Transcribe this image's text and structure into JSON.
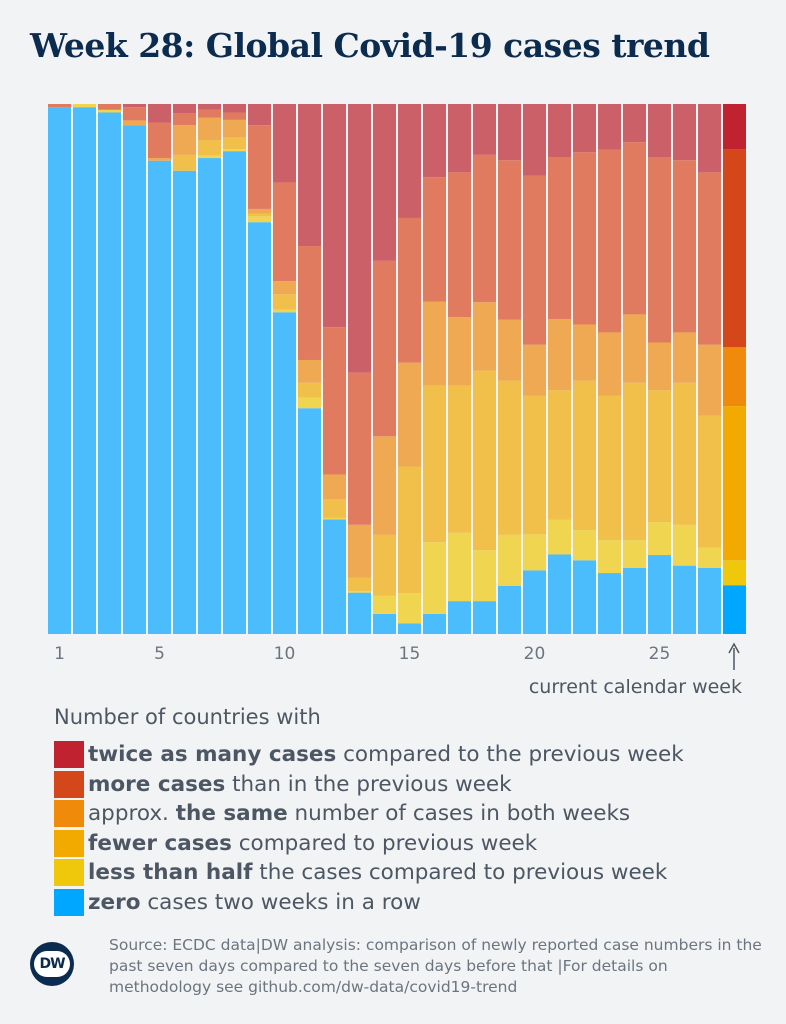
{
  "title": "Week 28: Global Covid-19 cases trend",
  "current_week_label": "current calendar week",
  "legend_title": "Number of countries with",
  "legend": [
    {
      "key": "twice",
      "prefix": "",
      "bold": "twice as many cases",
      "suffix": " compared to the previous week",
      "color": "#c0232f",
      "faded": "#cc6068"
    },
    {
      "key": "more",
      "prefix": "",
      "bold": "more cases",
      "suffix": " than in the previous week",
      "color": "#d4471b",
      "faded": "#e07b60"
    },
    {
      "key": "same",
      "prefix": "approx. ",
      "bold": "the same",
      "suffix": " number of cases in both weeks",
      "color": "#ef8a0b",
      "faded": "#eea952"
    },
    {
      "key": "fewer",
      "prefix": "",
      "bold": "fewer cases",
      "suffix": " compared to previous week",
      "color": "#f2aa00",
      "faded": "#f0c04a"
    },
    {
      "key": "lesshalf",
      "prefix": "",
      "bold": "less than half",
      "suffix": " the cases compared to previous week",
      "color": "#f0c80b",
      "faded": "#f0d550"
    },
    {
      "key": "zero",
      "prefix": "",
      "bold": "zero",
      "suffix": " cases two weeks in a row",
      "color": "#00a7ff",
      "faded": "#4bbcfc"
    }
  ],
  "source": "Source: ECDC data|DW analysis: comparison of newly reported case numbers in the past seven days compared to the seven days before that |For details on methodology see github.com/dw-data/covid19-trend",
  "logo_text": "DW",
  "chart_data": {
    "type": "bar",
    "stacked": "100%",
    "unit": "percent of countries",
    "x": [
      1,
      2,
      3,
      4,
      5,
      6,
      7,
      8,
      9,
      10,
      11,
      12,
      13,
      14,
      15,
      16,
      17,
      18,
      19,
      20,
      21,
      22,
      23,
      24,
      25,
      26,
      27,
      28
    ],
    "xticks": [
      "1",
      "5",
      "10",
      "15",
      "20",
      "25"
    ],
    "ylim": [
      0,
      100
    ],
    "grid": false,
    "current_week": 28,
    "series": [
      {
        "key": "zero",
        "values": [
          99.4,
          99.4,
          98.4,
          96.0,
          89.3,
          87.4,
          89.8,
          91.1,
          77.7,
          60.7,
          42.6,
          21.6,
          7.8,
          3.8,
          2.0,
          3.8,
          6.2,
          6.2,
          9.1,
          12.0,
          15.0,
          13.9,
          11.5,
          12.5,
          14.9,
          12.9,
          12.5,
          9.2
        ]
      },
      {
        "key": "lesshalf",
        "values": [
          0,
          0.6,
          0.5,
          0,
          0,
          0,
          0.5,
          0.4,
          1.1,
          0.5,
          2.0,
          0.3,
          0.3,
          3.4,
          5.7,
          13.5,
          12.9,
          9.6,
          9.6,
          6.8,
          6.6,
          5.7,
          6.2,
          5.2,
          6.2,
          7.7,
          3.8,
          4.7
        ]
      },
      {
        "key": "fewer",
        "values": [
          0,
          0,
          0,
          0,
          0,
          3.0,
          2.9,
          2.2,
          0.5,
          2.9,
          2.8,
          3.5,
          2.5,
          11.5,
          23.9,
          29.6,
          27.8,
          33.9,
          29.1,
          26.2,
          24.4,
          28.2,
          27.3,
          29.7,
          24.9,
          26.8,
          24.9,
          29.1
        ]
      },
      {
        "key": "same",
        "values": [
          0,
          0,
          0,
          0.9,
          0.5,
          5.6,
          4.2,
          3.3,
          0.9,
          2.5,
          4.3,
          4.7,
          10.0,
          18.6,
          19.6,
          15.8,
          12.9,
          12.9,
          11.5,
          9.6,
          13.4,
          10.6,
          11.9,
          12.9,
          9.0,
          9.5,
          13.4,
          11.1
        ]
      },
      {
        "key": "more",
        "values": [
          0.6,
          0,
          1.1,
          2.5,
          6.7,
          2.3,
          1.5,
          1.4,
          15.8,
          18.6,
          21.5,
          27.8,
          28.7,
          33.1,
          27.3,
          23.5,
          27.3,
          27.8,
          30.1,
          31.9,
          30.6,
          32.5,
          34.5,
          32.5,
          35.0,
          32.5,
          32.5,
          37.4
        ]
      },
      {
        "key": "twice",
        "values": [
          0,
          0,
          0,
          0.6,
          3.5,
          1.7,
          1.1,
          1.6,
          4.0,
          14.8,
          26.8,
          42.1,
          50.7,
          29.6,
          21.5,
          13.8,
          12.9,
          9.6,
          10.6,
          13.5,
          10.0,
          9.1,
          8.6,
          7.2,
          10.0,
          10.6,
          12.9,
          8.5
        ]
      }
    ]
  }
}
